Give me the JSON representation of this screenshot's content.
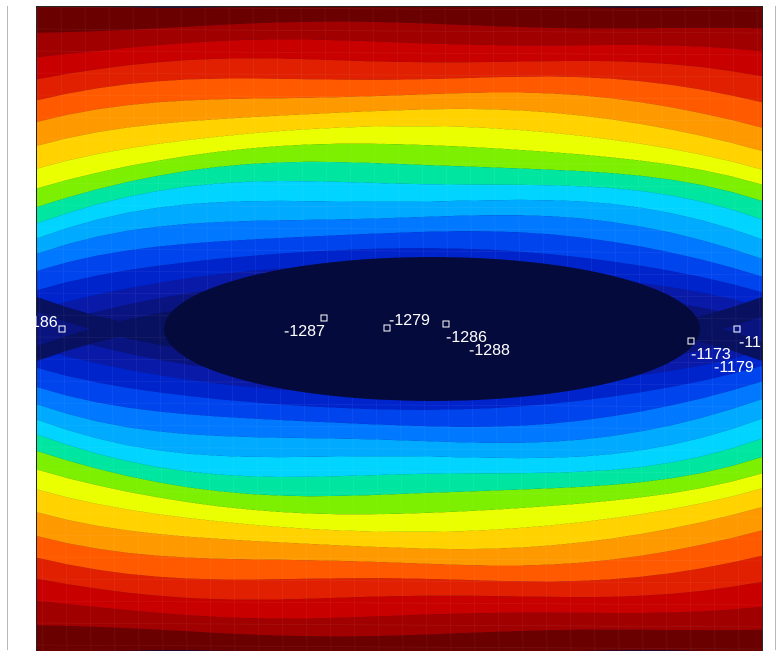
{
  "probes": [
    {
      "label": "186"
    },
    {
      "label": "-1287"
    },
    {
      "label": "-1279"
    },
    {
      "label": "-1286"
    },
    {
      "label": "-1288"
    },
    {
      "label": "-1173"
    },
    {
      "label": "-1179"
    },
    {
      "label": "-11"
    }
  ],
  "colors": {
    "band_top_to_center": [
      "#6b0000",
      "#a00000",
      "#c80000",
      "#e02000",
      "#ff5a00",
      "#ff9900",
      "#ffd200",
      "#eaff00",
      "#7cf000",
      "#00e6a0",
      "#00d4ff",
      "#00aaff",
      "#0078ff",
      "#0044ee",
      "#0024cc",
      "#0a1aa8",
      "#0a1480",
      "#081060",
      "#060b45"
    ],
    "probe_marker": "#ffffff",
    "probe_label": "#ffffff"
  }
}
